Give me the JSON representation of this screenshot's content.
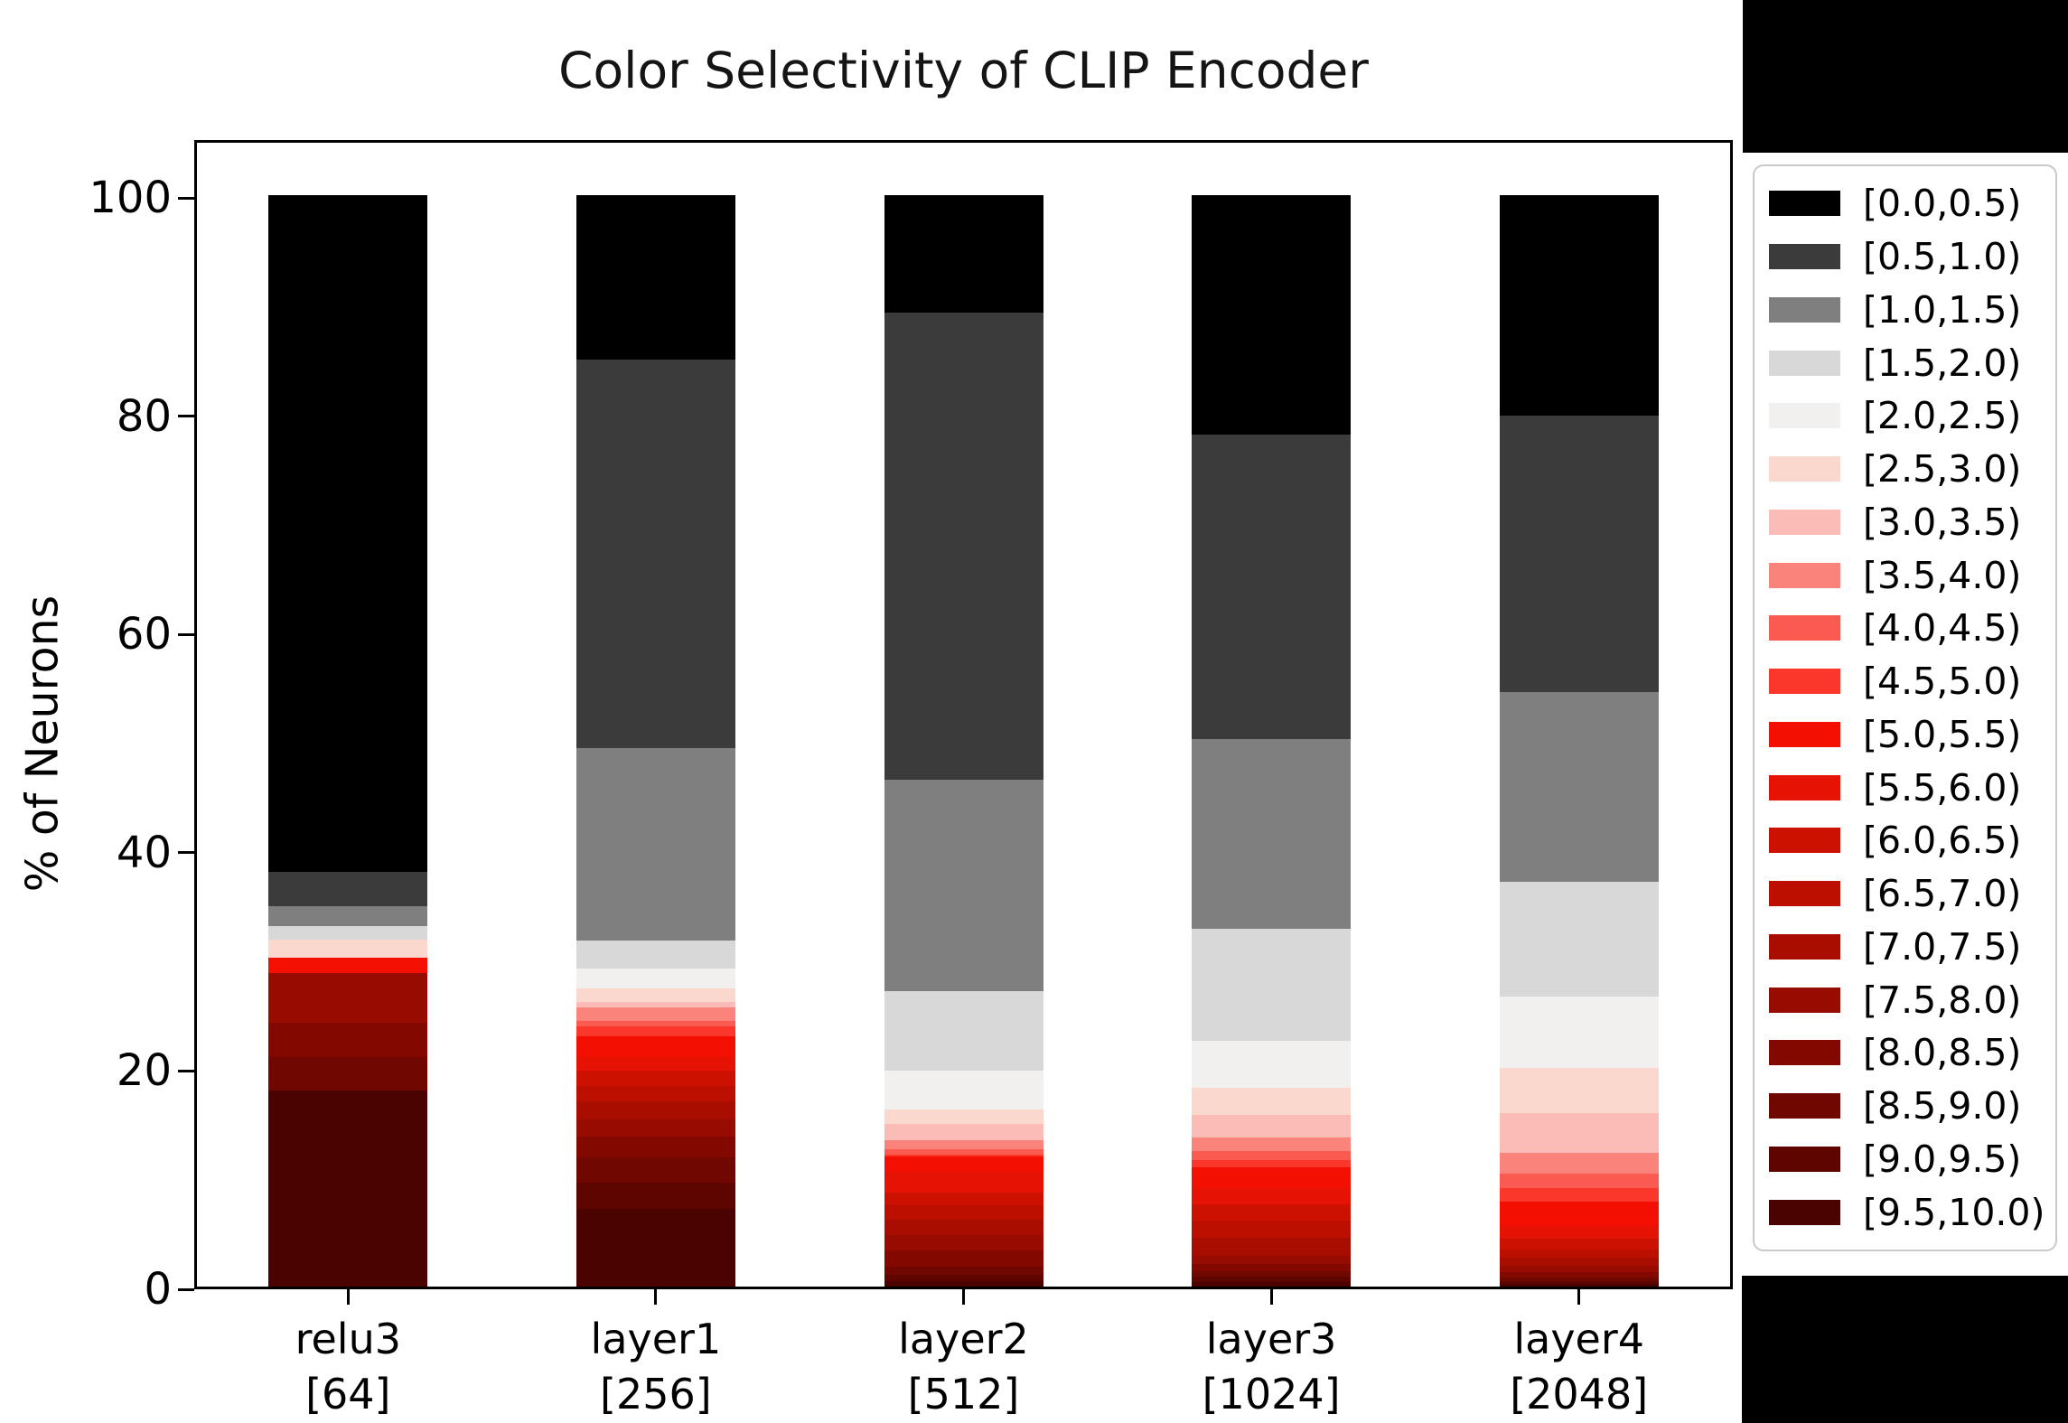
{
  "chart_data": {
    "type": "bar",
    "variant": "stacked-percentage",
    "title": "Color Selectivity of CLIP Encoder",
    "ylabel": "% of Neurons",
    "xlabel": "",
    "ylim": [
      0,
      104.8
    ],
    "yticks": [
      0,
      20,
      40,
      60,
      80,
      100
    ],
    "grid": false,
    "legend_position": "outside-right",
    "categories": [
      "relu3",
      "layer1",
      "layer2",
      "layer3",
      "layer4"
    ],
    "category_counts": [
      "[64]",
      "[256]",
      "[512]",
      "[1024]",
      "[2048]"
    ],
    "series": [
      {
        "name": "[0.0,0.5)",
        "color": "#000000",
        "values": [
          62.0,
          15.1,
          10.8,
          21.9,
          20.2
        ]
      },
      {
        "name": "[0.5,1.0)",
        "color": "#3b3b3b",
        "values": [
          3.15,
          35.6,
          42.8,
          27.9,
          25.3
        ]
      },
      {
        "name": "[1.0,1.5)",
        "color": "#7f7f7f",
        "values": [
          1.85,
          17.6,
          19.3,
          17.4,
          17.4
        ]
      },
      {
        "name": "[1.5,2.0)",
        "color": "#d8d8d8",
        "values": [
          1.2,
          2.6,
          7.3,
          10.3,
          10.5
        ]
      },
      {
        "name": "[2.0,2.5)",
        "color": "#f2f0ef",
        "values": [
          0,
          1.8,
          3.6,
          4.3,
          6.6
        ]
      },
      {
        "name": "[2.5,3.0)",
        "color": "#fbd8cd",
        "values": [
          1.7,
          1.2,
          1.3,
          2.5,
          4.1
        ]
      },
      {
        "name": "[3.0,3.5)",
        "color": "#fbbcb8",
        "values": [
          0,
          0.5,
          1.5,
          2.05,
          3.65
        ]
      },
      {
        "name": "[3.5,4.0)",
        "color": "#fa837b",
        "values": [
          0,
          1.3,
          0.8,
          1.25,
          1.9
        ]
      },
      {
        "name": "[4.0,4.5)",
        "color": "#fb5a51",
        "values": [
          0,
          0.5,
          0.5,
          0.8,
          1.35
        ]
      },
      {
        "name": "[4.5,5.0)",
        "color": "#fb372b",
        "values": [
          0,
          0.9,
          0.2,
          0.7,
          1.2
        ]
      },
      {
        "name": "[5.0,5.5)",
        "color": "#f30f02",
        "values": [
          1.4,
          1.9,
          1.4,
          1.9,
          2.25
        ]
      },
      {
        "name": "[5.5,6.0)",
        "color": "#e61204",
        "values": [
          0,
          1.2,
          1.9,
          1.5,
          1.15
        ]
      },
      {
        "name": "[6.0,6.5)",
        "color": "#cd1100",
        "values": [
          0,
          1.4,
          1.15,
          1.5,
          1.0
        ]
      },
      {
        "name": "[6.5,7.0)",
        "color": "#bc0f00",
        "values": [
          0,
          1.4,
          1.35,
          1.5,
          0.8
        ]
      },
      {
        "name": "[7.0,7.5)",
        "color": "#a90d00",
        "values": [
          0,
          1.7,
          1.4,
          1.7,
          0.7
        ]
      },
      {
        "name": "[7.5,8.0)",
        "color": "#970b00",
        "values": [
          4.5,
          1.6,
          1.4,
          0.7,
          0.6
        ]
      },
      {
        "name": "[8.0,8.5)",
        "color": "#830900",
        "values": [
          3.2,
          1.9,
          1.5,
          0.7,
          0.5
        ]
      },
      {
        "name": "[8.5,9.0)",
        "color": "#700700",
        "values": [
          3.0,
          2.3,
          0.7,
          0.5,
          0.35
        ]
      },
      {
        "name": "[9.0,9.5)",
        "color": "#5e0500",
        "values": [
          0,
          2.4,
          0.6,
          0.5,
          0.25
        ]
      },
      {
        "name": "[9.5,10.0)",
        "color": "#4a0300",
        "values": [
          18.0,
          7.1,
          0.5,
          0.4,
          0.2
        ]
      }
    ]
  }
}
